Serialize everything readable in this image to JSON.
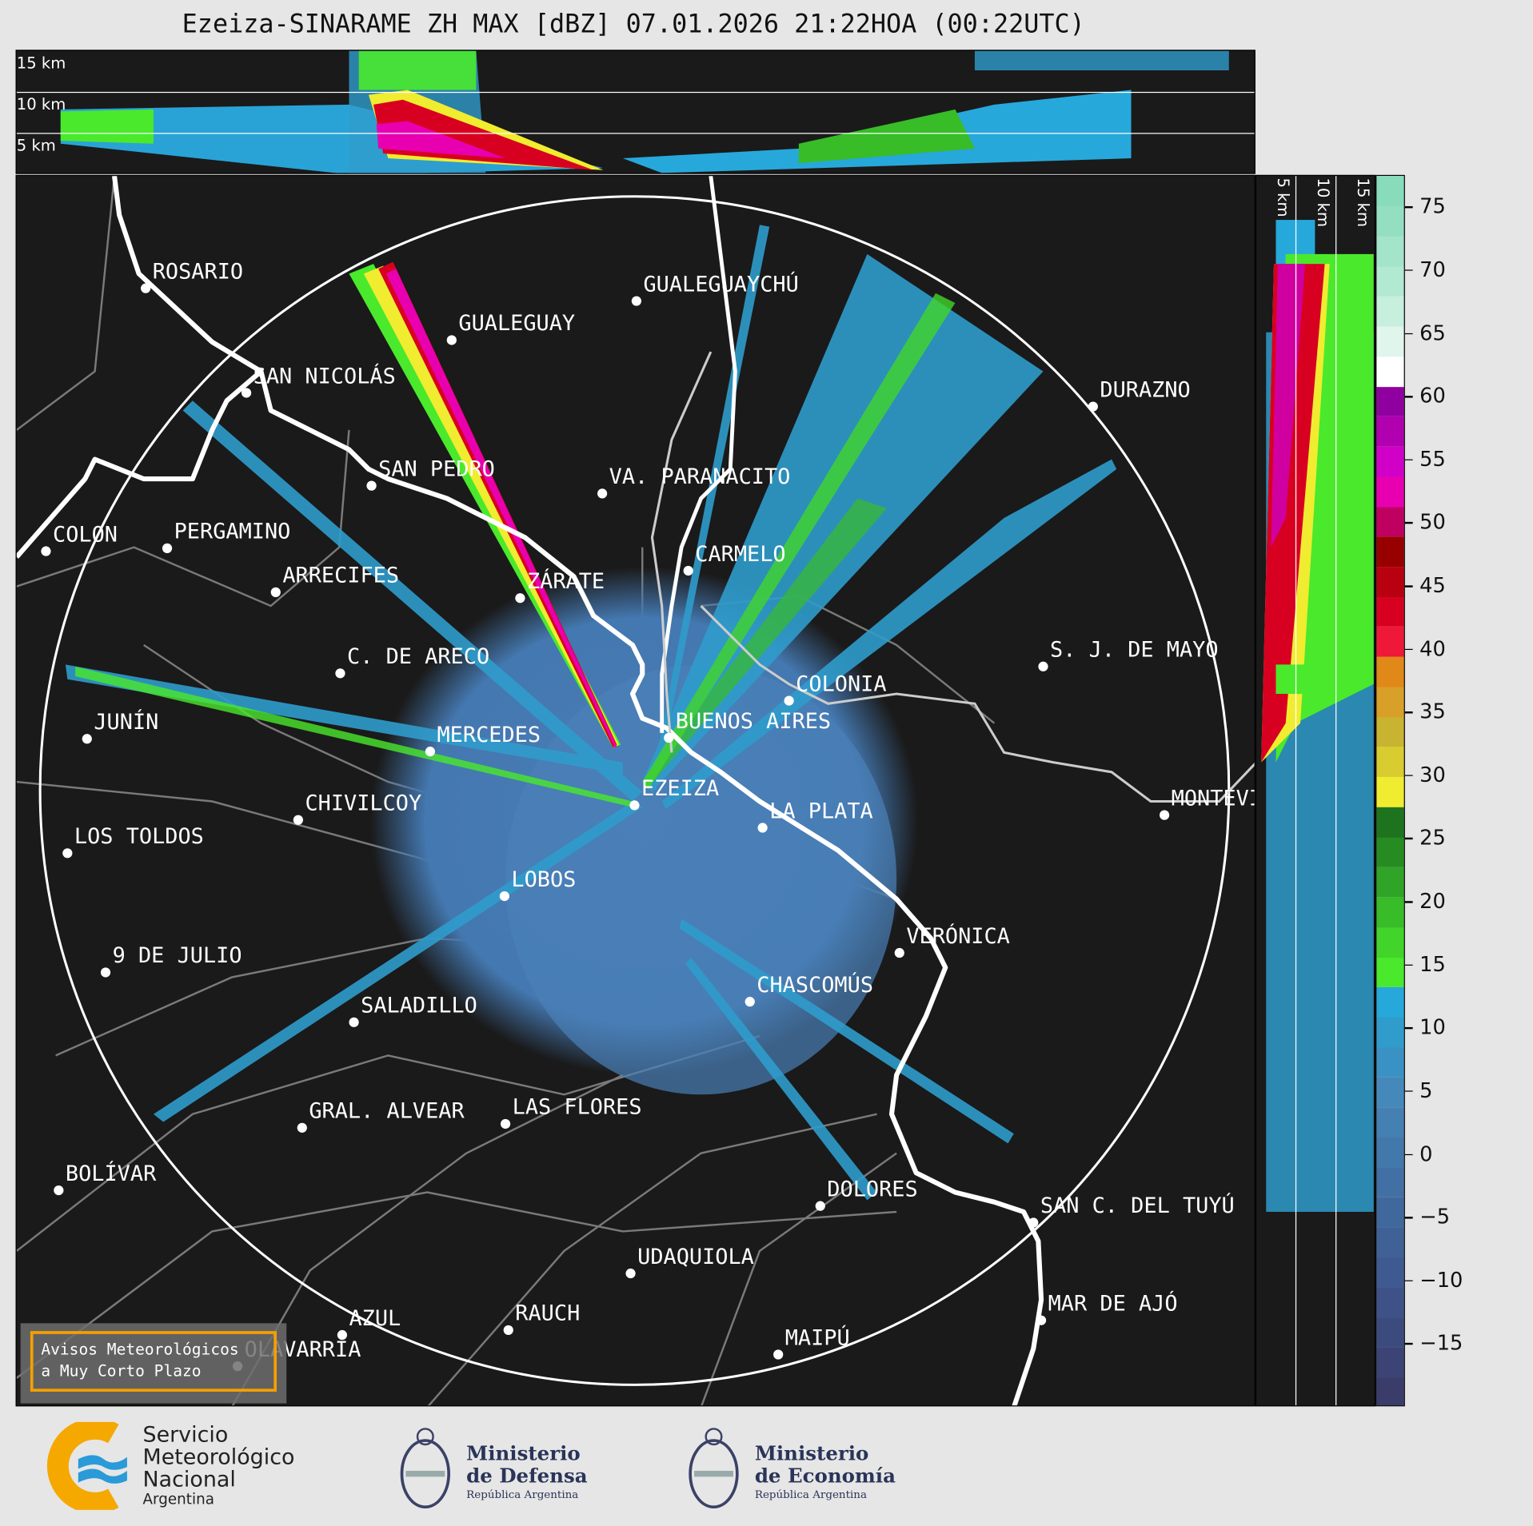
{
  "title": "Ezeiza-SINARAME ZH MAX [dBZ] 07.01.2026 21:22HOA (00:22UTC)",
  "top_panel": {
    "height_labels": [
      "15 km",
      "10 km",
      "5 km"
    ]
  },
  "side_panel": {
    "height_labels": [
      "5 km",
      "10 km",
      "15 km"
    ]
  },
  "colorbar": {
    "unit": "dBZ",
    "range": [
      -20,
      77.5
    ],
    "ticks": [
      "75",
      "70",
      "65",
      "60",
      "55",
      "50",
      "45",
      "40",
      "35",
      "30",
      "25",
      "20",
      "15",
      "10",
      "5",
      "0",
      "−5",
      "−10",
      "−15"
    ],
    "tick_values": [
      75,
      70,
      65,
      60,
      55,
      50,
      45,
      40,
      35,
      30,
      25,
      20,
      15,
      10,
      5,
      0,
      -5,
      -10,
      -15
    ],
    "colors": [
      "#3a3d6a",
      "#3b4474",
      "#3c4b7e",
      "#3e5288",
      "#3f5a90",
      "#406196",
      "#41689c",
      "#4270a4",
      "#4378ab",
      "#4480b2",
      "#4588ba",
      "#3a92c4",
      "#2f9ccc",
      "#27a8da",
      "#4ae92c",
      "#42d42a",
      "#38bc28",
      "#2fa426",
      "#268c22",
      "#1e741e",
      "#f0ec30",
      "#d8cc30",
      "#c8b430",
      "#d8a028",
      "#e08818",
      "#f01838",
      "#d80020",
      "#b80010",
      "#980000",
      "#c00060",
      "#e800b0",
      "#d000c8",
      "#b000b0",
      "#9000a0",
      "#ffffff",
      "#e0f5ec",
      "#c6efde",
      "#b2e9d2",
      "#a4e4ca",
      "#94dfc2",
      "#88dcbc"
    ]
  },
  "map": {
    "cities": [
      {
        "name": "ROSARIO"
      },
      {
        "name": "GUALEGUAY"
      },
      {
        "name": "GUALEGUAYCHÚ"
      },
      {
        "name": "SAN NICOLÁS"
      },
      {
        "name": "DURAZNO"
      },
      {
        "name": "SAN PEDRO"
      },
      {
        "name": "VA. PARANACITO"
      },
      {
        "name": "COLON"
      },
      {
        "name": "PERGAMINO"
      },
      {
        "name": "CARMELO"
      },
      {
        "name": "ARRECIFES"
      },
      {
        "name": "ZÁRATE"
      },
      {
        "name": "C. DE ARECO"
      },
      {
        "name": "S. J. DE MAYO"
      },
      {
        "name": "COLONIA"
      },
      {
        "name": "JUNÍN"
      },
      {
        "name": "BUENOS AIRES"
      },
      {
        "name": "MERCEDES"
      },
      {
        "name": "EZEIZA"
      },
      {
        "name": "MONTEVIDEO"
      },
      {
        "name": "CHIVILCOY"
      },
      {
        "name": "LA PLATA"
      },
      {
        "name": "LOS TOLDOS"
      },
      {
        "name": "LOBOS"
      },
      {
        "name": "VERÓNICA"
      },
      {
        "name": "9 DE JULIO"
      },
      {
        "name": "CHASCOMÚS"
      },
      {
        "name": "SALADILLO"
      },
      {
        "name": "GRAL. ALVEAR"
      },
      {
        "name": "LAS FLORES"
      },
      {
        "name": "BOLÍVAR"
      },
      {
        "name": "DOLORES"
      },
      {
        "name": "SAN C. DEL TUYÚ"
      },
      {
        "name": "UDAQUIOLA"
      },
      {
        "name": "MAR DE AJÓ"
      },
      {
        "name": "RAUCH"
      },
      {
        "name": "AZUL"
      },
      {
        "name": "OLAVARRÍA"
      },
      {
        "name": "MAIPÚ"
      }
    ],
    "avisos": {
      "line1": "Avisos Meteorológicos",
      "line2": "a Muy Corto Plazo"
    }
  },
  "footer": {
    "smn": {
      "line1": "Servicio",
      "line2": "Meteorológico",
      "line3": "Nacional",
      "line4": "Argentina"
    },
    "defensa": {
      "line1": "Ministerio",
      "line2": "de Defensa",
      "line3": "República Argentina"
    },
    "economia": {
      "line1": "Ministerio",
      "line2": "de Economía",
      "line3": "República Argentina"
    }
  }
}
